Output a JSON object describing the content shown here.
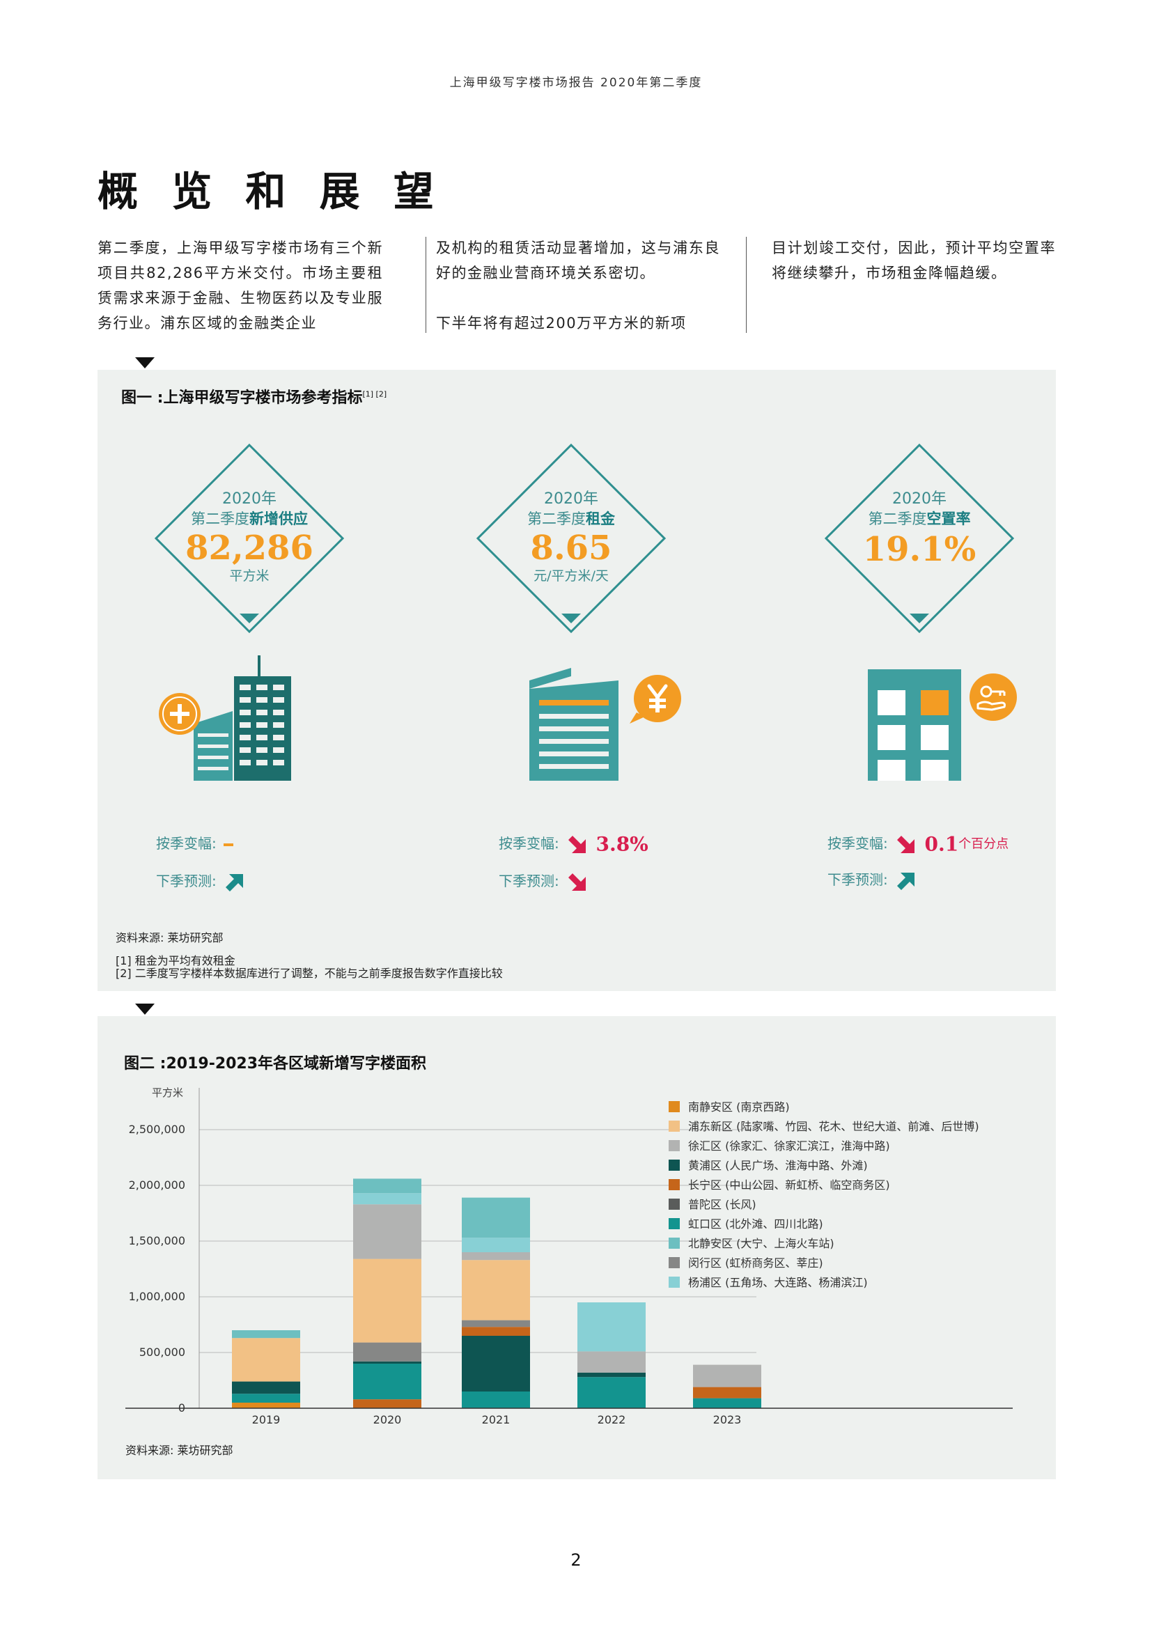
{
  "header": "上海甲级写字楼市场报告 2020年第二季度",
  "title": "概 览 和 展 望",
  "intro": {
    "col1": "第二季度，上海甲级写字楼市场有三个新项目共82,286平方米交付。市场主要租赁需求来源于金融、生物医药以及专业服务行业。浦东区域的金融类企业",
    "col2a": "及机构的租赁活动显著增加，这与浦东良好的金融业营商环境关系密切。",
    "col2b": "下半年将有超过200万平方米的新项",
    "col3": "目计划竣工交付，因此，预计平均空置率将继续攀升，市场租金降幅趋缓。"
  },
  "fig1": {
    "title": "图一 :上海甲级写字楼市场参考指标",
    "title_sup": "[1] [2]",
    "metrics": [
      {
        "year": "2020年",
        "label_pre": "第二季度",
        "label_em": "新增供应",
        "value": "82,286",
        "unit": "平方米",
        "qoq_label": "按季变幅:",
        "qoq_value": "",
        "qoq_suffix": "",
        "qoq_direction": "flat",
        "forecast_label": "下季预测:",
        "forecast_direction": "up"
      },
      {
        "year": "2020年",
        "label_pre": "第二季度",
        "label_em": "租金",
        "value": "8.65",
        "unit": "元/平方米/天",
        "qoq_label": "按季变幅:",
        "qoq_value": "3.8%",
        "qoq_suffix": "",
        "qoq_direction": "down",
        "forecast_label": "下季预测:",
        "forecast_direction": "down"
      },
      {
        "year": "2020年",
        "label_pre": "第二季度",
        "label_em": "空置率",
        "value": "19.1%",
        "unit": "",
        "qoq_label": "按季变幅:",
        "qoq_value": "0.1",
        "qoq_suffix": "个百分点",
        "qoq_direction": "down",
        "forecast_label": "下季预测:",
        "forecast_direction": "up"
      }
    ],
    "icons": [
      "building-add-icon",
      "yuan-icon",
      "key-hand-icon"
    ],
    "source": "资料来源: 莱坊研究部",
    "notes": [
      "[1] 租金为平均有效租金",
      "[2] 二季度写字楼样本数据库进行了调整，不能与之前季度报告数字作直接比较"
    ],
    "colors": {
      "teal": "#3f9f9f",
      "orange": "#f39c23",
      "red": "#d81e4e",
      "panel": "#eef1ef"
    }
  },
  "fig2": {
    "title": "图二 :2019-2023年各区域新增写字楼面积",
    "source": "资料来源: 莱坊研究部"
  },
  "chart_data": {
    "type": "bar",
    "stacked": true,
    "title": "图二 :2019-2023年各区域新增写字楼面积",
    "ylabel": "平方米",
    "xlabel": "",
    "categories": [
      "2019",
      "2020",
      "2021",
      "2022",
      "2023"
    ],
    "ylim": [
      0,
      2500000
    ],
    "yticks": [
      0,
      500000,
      1000000,
      1500000,
      2000000,
      2500000
    ],
    "ytick_labels": [
      "0",
      "500,000",
      "1,000,000",
      "1,500,000",
      "2,000,000",
      "2,500,000"
    ],
    "grid": true,
    "legend_position": "right",
    "series": [
      {
        "name": "南静安区 (南京西路)",
        "color": "#e08a1e",
        "values": [
          50000,
          0,
          0,
          0,
          0
        ]
      },
      {
        "name": "浦东新区 (陆家嘴、竹园、花木、世纪大道、前滩、后世博)",
        "color": "#f2c185",
        "values": [
          390000,
          750000,
          540000,
          0,
          0
        ]
      },
      {
        "name": "徐汇区 (徐家汇、徐家汇滨江，淮海中路)",
        "color": "#b2b3b2",
        "values": [
          0,
          490000,
          70000,
          190000,
          200000
        ]
      },
      {
        "name": "黄浦区 (人民广场、淮海中路、外滩)",
        "color": "#0e5552",
        "values": [
          110000,
          20000,
          500000,
          40000,
          0
        ]
      },
      {
        "name": "长宁区 (中山公园、新虹桥、临空商务区)",
        "color": "#c5651a",
        "values": [
          0,
          80000,
          80000,
          0,
          100000
        ]
      },
      {
        "name": "普陀区 (长风)",
        "color": "#5a5c5b",
        "values": [
          0,
          0,
          0,
          0,
          0
        ]
      },
      {
        "name": "虹口区 (北外滩、四川北路)",
        "color": "#13948f",
        "values": [
          80000,
          320000,
          150000,
          280000,
          90000
        ]
      },
      {
        "name": "北静安区 (大宁、上海火车站)",
        "color": "#6dbfc0",
        "values": [
          70000,
          130000,
          360000,
          0,
          0
        ]
      },
      {
        "name": "闵行区 (虹桥商务区、莘庄)",
        "color": "#868786",
        "values": [
          0,
          170000,
          60000,
          0,
          0
        ]
      },
      {
        "name": "杨浦区 (五角场、大连路、杨浦滨江)",
        "color": "#88d0d5",
        "values": [
          0,
          100000,
          130000,
          440000,
          0
        ]
      }
    ],
    "stack_order_bottom_up": [
      [
        "南静安区 (南京西路)",
        "虹口区 (北外滩、四川北路)",
        "黄浦区 (人民广场、淮海中路、外滩)",
        "浦东新区 (陆家嘴、竹园、花木、世纪大道、前滩、后世博)",
        "北静安区 (大宁、上海火车站)"
      ],
      [
        "长宁区 (中山公园、新虹桥、临空商务区)",
        "虹口区 (北外滩、四川北路)",
        "黄浦区 (人民广场、淮海中路、外滩)",
        "南静安区 (南京西路)",
        "闵行区 (虹桥商务区、莘庄)",
        "浦东新区 (陆家嘴、竹园、花木、世纪大道、前滩、后世博)",
        "徐汇区 (徐家汇、徐家汇滨江，淮海中路)",
        "杨浦区 (五角场、大连路、杨浦滨江)",
        "北静安区 (大宁、上海火车站)"
      ],
      [
        "虹口区 (北外滩、四川北路)",
        "黄浦区 (人民广场、淮海中路、外滩)",
        "长宁区 (中山公园、新虹桥、临空商务区)",
        "闵行区 (虹桥商务区、莘庄)",
        "浦东新区 (陆家嘴、竹园、花木、世纪大道、前滩、后世博)",
        "徐汇区 (徐家汇、徐家汇滨江，淮海中路)",
        "杨浦区 (五角场、大连路、杨浦滨江)",
        "北静安区 (大宁、上海火车站)"
      ],
      [
        "虹口区 (北外滩、四川北路)",
        "黄浦区 (人民广场、淮海中路、外滩)",
        "徐汇区 (徐家汇、徐家汇滨江，淮海中路)",
        "杨浦区 (五角场、大连路、杨浦滨江)"
      ],
      [
        "虹口区 (北外滩、四川北路)",
        "长宁区 (中山公园、新虹桥、临空商务区)",
        "徐汇区 (徐家汇、徐家汇滨江，淮海中路)"
      ]
    ]
  },
  "page_number": "2"
}
